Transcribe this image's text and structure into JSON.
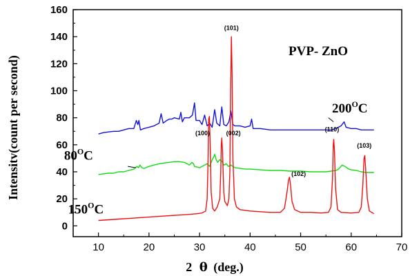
{
  "chart_data": {
    "type": "line",
    "title": "PVP- ZnO",
    "xlabel_prefix": "2",
    "xlabel_theta": "θ",
    "xlabel_suffix": "(deg.)",
    "ylabel": "Intensitv(count per second)",
    "xlim": [
      5,
      70
    ],
    "ylim": [
      -8,
      160
    ],
    "x_ticks": [
      10,
      20,
      30,
      40,
      50,
      60,
      70
    ],
    "y_ticks": [
      0,
      20,
      40,
      60,
      80,
      100,
      120,
      140,
      160
    ],
    "colors": {
      "blue": "#1010e0",
      "green": "#10dd10",
      "red": "#ee1010",
      "axis": "#000000"
    },
    "series": [
      {
        "name": "200",
        "color": "blue",
        "label_x": 56.2,
        "label_y": 84,
        "label_unit": "C",
        "label_sup": "O",
        "points": [
          [
            10,
            68
          ],
          [
            11,
            69
          ],
          [
            12,
            69.5
          ],
          [
            13,
            70
          ],
          [
            14,
            70
          ],
          [
            15,
            71
          ],
          [
            16,
            72
          ],
          [
            17,
            72
          ],
          [
            17.5,
            78
          ],
          [
            17.8,
            75
          ],
          [
            18,
            78
          ],
          [
            18.3,
            71
          ],
          [
            19,
            72
          ],
          [
            20,
            73
          ],
          [
            21,
            74
          ],
          [
            22,
            76
          ],
          [
            22.4,
            83
          ],
          [
            22.8,
            76
          ],
          [
            23.5,
            78
          ],
          [
            24,
            79
          ],
          [
            24.5,
            79
          ],
          [
            25,
            80
          ],
          [
            26,
            79
          ],
          [
            26.3,
            84
          ],
          [
            26.6,
            77
          ],
          [
            27,
            80
          ],
          [
            28,
            80
          ],
          [
            28.6,
            82
          ],
          [
            29,
            91
          ],
          [
            29.3,
            78
          ],
          [
            30,
            78
          ],
          [
            30.5,
            75
          ],
          [
            31,
            82
          ],
          [
            31.5,
            74
          ],
          [
            32,
            76
          ],
          [
            32.5,
            73
          ],
          [
            33,
            86
          ],
          [
            33.4,
            76
          ],
          [
            34,
            74
          ],
          [
            34.4,
            88
          ],
          [
            34.8,
            75
          ],
          [
            35.3,
            74
          ],
          [
            35.8,
            77
          ],
          [
            36.2,
            85
          ],
          [
            36.6,
            75
          ],
          [
            37,
            74
          ],
          [
            38,
            74
          ],
          [
            39,
            73
          ],
          [
            40,
            74
          ],
          [
            40.3,
            79
          ],
          [
            40.6,
            72
          ],
          [
            42,
            72
          ],
          [
            44,
            71
          ],
          [
            46,
            71
          ],
          [
            48,
            71
          ],
          [
            50,
            71
          ],
          [
            52,
            71
          ],
          [
            54,
            71
          ],
          [
            56,
            71
          ],
          [
            57,
            72
          ],
          [
            58,
            74
          ],
          [
            58.6,
            77
          ],
          [
            59,
            73
          ],
          [
            60,
            72
          ],
          [
            61,
            72
          ],
          [
            62,
            71
          ],
          [
            63,
            71
          ],
          [
            64.5,
            71
          ]
        ]
      },
      {
        "name": "80",
        "color": "green",
        "label_x": 3.2,
        "label_y": 49,
        "label_unit": "C",
        "label_sup": "O",
        "points": [
          [
            10,
            38
          ],
          [
            11,
            38.5
          ],
          [
            12,
            39
          ],
          [
            13,
            39
          ],
          [
            14,
            40
          ],
          [
            15,
            40
          ],
          [
            16,
            41
          ],
          [
            17,
            42
          ],
          [
            17.6,
            44
          ],
          [
            17.9,
            43
          ],
          [
            18.2,
            45
          ],
          [
            18.6,
            43
          ],
          [
            19,
            42.5
          ],
          [
            20,
            44
          ],
          [
            21,
            45
          ],
          [
            22,
            46
          ],
          [
            23,
            46.5
          ],
          [
            24,
            47
          ],
          [
            25,
            47.5
          ],
          [
            26,
            47.5
          ],
          [
            27,
            47
          ],
          [
            28,
            45
          ],
          [
            28.5,
            47
          ],
          [
            28.8,
            46
          ],
          [
            29,
            44
          ],
          [
            30,
            43
          ],
          [
            31,
            45
          ],
          [
            31.5,
            46
          ],
          [
            32,
            44
          ],
          [
            32.5,
            49
          ],
          [
            32.8,
            51
          ],
          [
            33,
            53
          ],
          [
            33.3,
            49
          ],
          [
            33.6,
            47
          ],
          [
            34,
            49
          ],
          [
            34.4,
            48
          ],
          [
            34.8,
            45
          ],
          [
            35.3,
            46
          ],
          [
            35.7,
            44
          ],
          [
            36.2,
            45
          ],
          [
            37,
            43
          ],
          [
            38,
            42.5
          ],
          [
            39,
            42
          ],
          [
            40,
            42
          ],
          [
            42,
            41.5
          ],
          [
            44,
            41
          ],
          [
            46,
            41
          ],
          [
            48,
            40.5
          ],
          [
            50,
            40.5
          ],
          [
            52,
            40
          ],
          [
            54,
            40
          ],
          [
            55,
            40
          ],
          [
            56,
            40.5
          ],
          [
            57,
            41
          ],
          [
            57.5,
            42
          ],
          [
            58.2,
            45
          ],
          [
            58.8,
            44
          ],
          [
            59.5,
            42
          ],
          [
            60,
            41.5
          ],
          [
            61,
            41
          ],
          [
            62,
            40
          ],
          [
            63,
            39.5
          ],
          [
            64.5,
            39.5
          ]
        ]
      },
      {
        "name": "150",
        "color": "red",
        "label_x": 4.0,
        "label_y": 9,
        "label_unit": "C",
        "label_sup": "O",
        "points": [
          [
            10,
            4
          ],
          [
            12,
            4.5
          ],
          [
            14,
            5
          ],
          [
            16,
            5.5
          ],
          [
            18,
            6
          ],
          [
            20,
            6.5
          ],
          [
            22,
            7
          ],
          [
            24,
            7.5
          ],
          [
            26,
            8
          ],
          [
            28,
            8.5
          ],
          [
            29.5,
            9
          ],
          [
            30.5,
            9.5
          ],
          [
            31.2,
            11
          ],
          [
            31.5,
            20
          ],
          [
            31.7,
            50
          ],
          [
            31.8,
            79
          ],
          [
            31.95,
            81
          ],
          [
            32.1,
            60
          ],
          [
            32.3,
            25
          ],
          [
            32.6,
            13
          ],
          [
            33,
            11
          ],
          [
            33.5,
            14
          ],
          [
            34,
            20
          ],
          [
            34.2,
            40
          ],
          [
            34.3,
            60
          ],
          [
            34.4,
            65
          ],
          [
            34.55,
            55
          ],
          [
            34.8,
            25
          ],
          [
            35,
            18
          ],
          [
            35.5,
            15
          ],
          [
            35.8,
            20
          ],
          [
            36,
            40
          ],
          [
            36.15,
            100
          ],
          [
            36.3,
            140
          ],
          [
            36.45,
            110
          ],
          [
            36.6,
            50
          ],
          [
            36.9,
            20
          ],
          [
            37.3,
            14
          ],
          [
            38,
            12
          ],
          [
            40,
            11
          ],
          [
            42,
            10.5
          ],
          [
            44,
            10
          ],
          [
            46,
            10
          ],
          [
            46.8,
            13
          ],
          [
            47.3,
            25
          ],
          [
            47.6,
            34
          ],
          [
            47.8,
            36
          ],
          [
            48,
            30
          ],
          [
            48.3,
            18
          ],
          [
            48.8,
            12
          ],
          [
            50,
            10
          ],
          [
            52,
            10
          ],
          [
            54,
            9.5
          ],
          [
            55.5,
            10
          ],
          [
            56,
            14
          ],
          [
            56.3,
            35
          ],
          [
            56.45,
            60
          ],
          [
            56.55,
            64
          ],
          [
            56.7,
            55
          ],
          [
            56.9,
            28
          ],
          [
            57.3,
            12
          ],
          [
            58,
            10
          ],
          [
            60,
            9.5
          ],
          [
            61.5,
            10
          ],
          [
            62,
            14
          ],
          [
            62.3,
            30
          ],
          [
            62.55,
            50
          ],
          [
            62.7,
            52
          ],
          [
            62.9,
            40
          ],
          [
            63.2,
            20
          ],
          [
            63.6,
            11
          ],
          [
            64.5,
            9
          ]
        ]
      }
    ],
    "annotations": [
      {
        "text": "(101)",
        "x": 36.3,
        "y": 145
      },
      {
        "text": "(100)",
        "x": 30.6,
        "y": 67
      },
      {
        "text": "(002)",
        "x": 36.7,
        "y": 67
      },
      {
        "text": "(110)",
        "x": 56.2,
        "y": 70
      },
      {
        "text": "(102)",
        "x": 49.6,
        "y": 37
      },
      {
        "text": "(103)",
        "x": 62.6,
        "y": 58
      }
    ]
  }
}
